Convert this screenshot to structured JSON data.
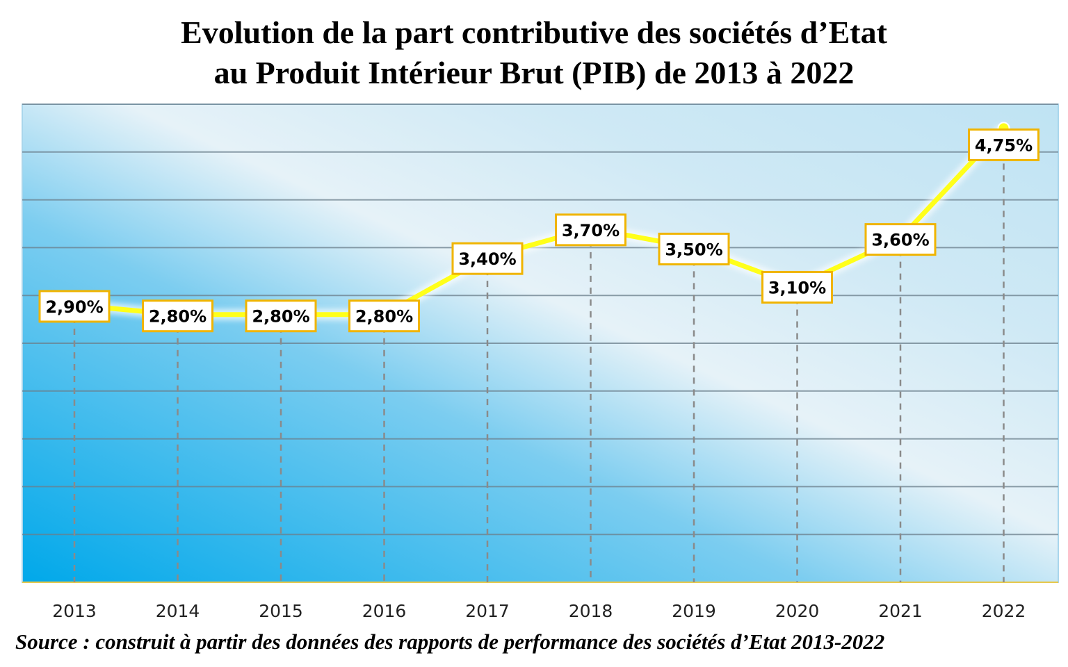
{
  "title_line1": "Evolution  de  la part contributive des sociétés  d’Etat",
  "title_line2": "au  Produit Intérieur Brut (PIB) de 2013 à 2022",
  "source": "Source : construit à partir des données des rapports de performance des sociétés d’Etat 2013-2022",
  "colors": {
    "line": "#ffff1a",
    "label_border": "#f0b400",
    "background_left": "#00a8ea",
    "background_right": "#bfe3f3",
    "gridline": "#6b7f8c",
    "dash": "#8a8a8a"
  },
  "chart_data": {
    "type": "line",
    "title": "Evolution  de  la part contributive des sociétés  d’Etat au  Produit Intérieur Brut (PIB) de 2013 à 2022",
    "xlabel": "",
    "ylabel": "",
    "categories": [
      "2013",
      "2014",
      "2015",
      "2016",
      "2017",
      "2018",
      "2019",
      "2020",
      "2021",
      "2022"
    ],
    "values": [
      2.9,
      2.8,
      2.8,
      2.8,
      3.4,
      3.7,
      3.5,
      3.1,
      3.6,
      4.75
    ],
    "data_labels": [
      "2,90%",
      "2,80%",
      "2,80%",
      "2,80%",
      "3,40%",
      "3,70%",
      "3,50%",
      "3,10%",
      "3,60%",
      "4,75%"
    ],
    "ylim": [
      0,
      5
    ],
    "grid": true,
    "legend": "none"
  }
}
